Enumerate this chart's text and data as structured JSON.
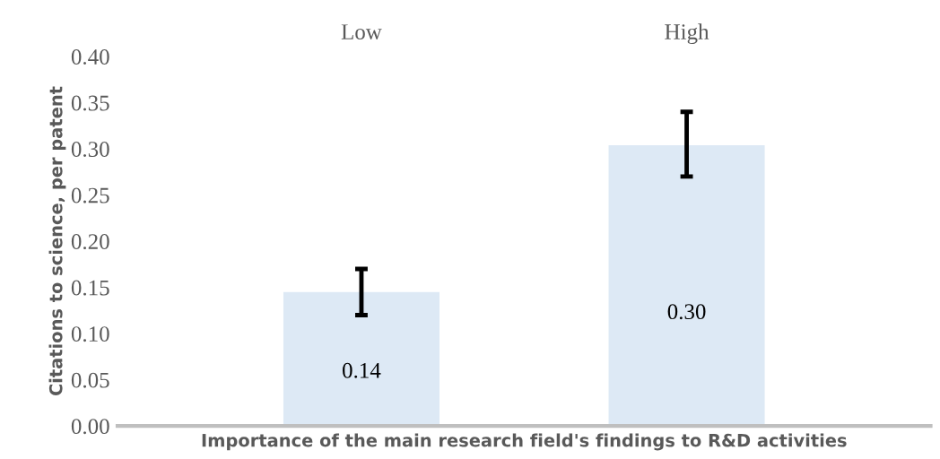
{
  "chart_data": {
    "type": "bar",
    "categories": [
      "Low",
      "High"
    ],
    "values": [
      0.145,
      0.304
    ],
    "value_labels": [
      "0.14",
      "0.30"
    ],
    "errors": [
      [
        0.12,
        0.17
      ],
      [
        0.27,
        0.34
      ]
    ],
    "color": "#dde9f5",
    "xlabel": "Importance of the main research field's findings to R&D activities",
    "ylabel": "Citations to science, per patent",
    "ylim": [
      0,
      0.4
    ],
    "yticks": [
      {
        "value": 0,
        "label": "0.00"
      },
      {
        "value": 0.05,
        "label": "0.05"
      },
      {
        "value": 0.1,
        "label": "0.10"
      },
      {
        "value": 0.15,
        "label": "0.15"
      },
      {
        "value": 0.2,
        "label": "0.20"
      },
      {
        "value": 0.25,
        "label": "0.25"
      },
      {
        "value": 0.3,
        "label": "0.30"
      },
      {
        "value": 0.35,
        "label": "0.35"
      },
      {
        "value": 0.4,
        "label": "0.40"
      }
    ],
    "grid": false
  }
}
